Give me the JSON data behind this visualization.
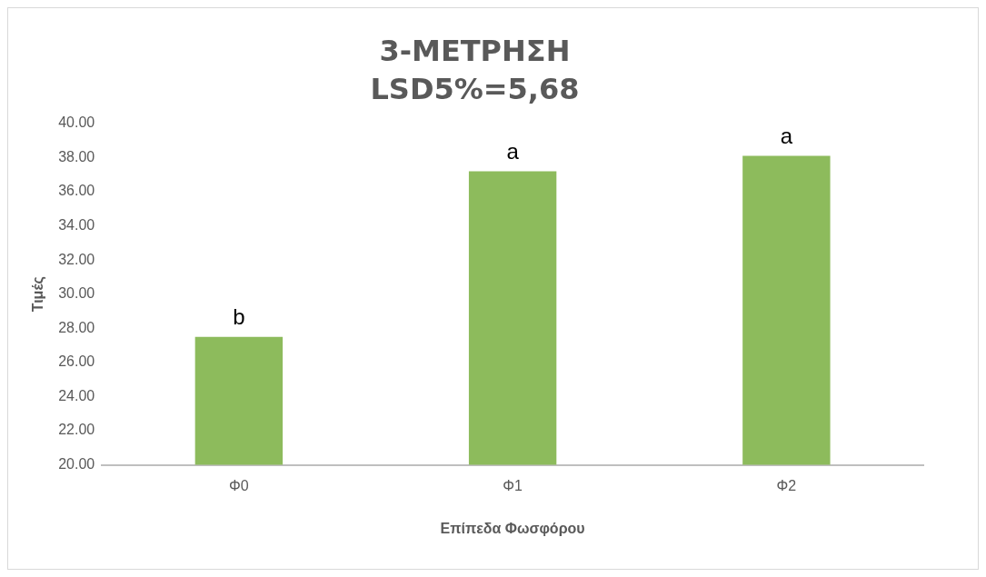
{
  "chart_data": {
    "type": "bar",
    "title": "3-ΜΕΤΡΗΣΗ",
    "subtitle": "LSD5%=5,68",
    "xlabel": "Επίπεδα Φωσφόρου",
    "ylabel": "Τιμές",
    "categories": [
      "Φ0",
      "Φ1",
      "Φ2"
    ],
    "values": [
      27.5,
      37.2,
      38.1
    ],
    "color": "#8dbb5c",
    "ylim": [
      20,
      40
    ],
    "yticks": [
      {
        "value": 20,
        "label": "20.00"
      },
      {
        "value": 22,
        "label": "22.00"
      },
      {
        "value": 24,
        "label": "24.00"
      },
      {
        "value": 26,
        "label": "26.00"
      },
      {
        "value": 28,
        "label": "28.00"
      },
      {
        "value": 30,
        "label": "30.00"
      },
      {
        "value": 32,
        "label": "32.00"
      },
      {
        "value": 34,
        "label": "34.00"
      },
      {
        "value": 36,
        "label": "36.00"
      },
      {
        "value": 38,
        "label": "38.00"
      },
      {
        "value": 40,
        "label": "40.00"
      }
    ],
    "grid": false,
    "legend": false,
    "annotations": [
      {
        "text": "b",
        "x": "Φ0",
        "y": 27.5
      },
      {
        "text": "a",
        "x": "Φ1",
        "y": 37.2
      },
      {
        "text": "a",
        "x": "Φ2",
        "y": 38.1
      }
    ]
  }
}
